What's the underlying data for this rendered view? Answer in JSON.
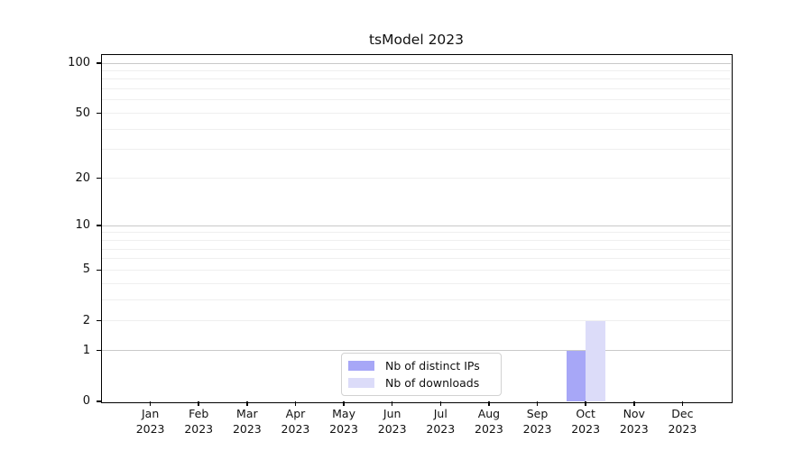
{
  "title": "tsModel 2023",
  "chart_data": {
    "type": "bar",
    "title": "tsModel 2023",
    "categories": [
      "Jan",
      "Feb",
      "Mar",
      "Apr",
      "May",
      "Jun",
      "Jul",
      "Aug",
      "Sep",
      "Oct",
      "Nov",
      "Dec"
    ],
    "x_tick_second_line": "2023",
    "series": [
      {
        "name": "Nb of distinct IPs",
        "color": "#a7a7f7",
        "values": [
          0,
          0,
          0,
          0,
          0,
          0,
          0,
          0,
          0,
          1,
          0,
          0
        ]
      },
      {
        "name": "Nb of downloads",
        "color": "#dcdcf9",
        "values": [
          0,
          0,
          0,
          0,
          0,
          0,
          0,
          0,
          0,
          2,
          0,
          0
        ]
      }
    ],
    "yscale": "log1p",
    "ylim": [
      0,
      112
    ],
    "y_ticks": [
      0,
      1,
      2,
      5,
      10,
      20,
      50,
      100
    ],
    "y_tick_labels": [
      "0",
      "1",
      "2",
      "5",
      "10",
      "20",
      "50",
      "100"
    ],
    "y_major_gridlines": [
      1,
      10,
      100
    ],
    "y_minor_gridlines": [
      3,
      4,
      6,
      7,
      8,
      9,
      30,
      40,
      60,
      70,
      80,
      90
    ],
    "grid": true,
    "legend_position": "lower center",
    "colors": {
      "major_grid": "#c9c9c9",
      "minor_grid": "#efefef",
      "axis": "#000000"
    }
  }
}
